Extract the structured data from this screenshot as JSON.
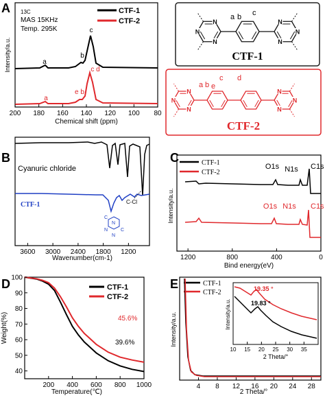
{
  "panel_letters": {
    "a": "A",
    "b": "B",
    "c": "C",
    "d": "D",
    "e": "E"
  },
  "structures": {
    "ctf1": {
      "title": "CTF-1",
      "labels": [
        "a",
        "b",
        "c"
      ],
      "ring_atom": "N"
    },
    "ctf2": {
      "title": "CTF-2",
      "labels": [
        "a",
        "b",
        "c",
        "d",
        "e"
      ],
      "ring_atom": "N"
    }
  },
  "colors": {
    "ctf1": "#000000",
    "ctf2": "#e0282c",
    "cyanuric": "#000000",
    "ctf1_ir": "#1f3fc4",
    "frame_ctf2": "#e0282c"
  },
  "chart_data": [
    {
      "id": "A",
      "type": "line",
      "annotation_lines": [
        "13C",
        "MAS 15KHz",
        "Temp.  295K"
      ],
      "ylabel": "Intensity/a.u.",
      "xlabel": "Chemical shift (ppm)",
      "xlim": [
        200,
        80
      ],
      "xticks": [
        "200",
        "180",
        "160",
        "140",
        "120",
        "100",
        "80"
      ],
      "legend_position": "top-right",
      "series": [
        {
          "name": "CTF-1",
          "peak_labels": [
            {
              "text": "a",
              "x": 172
            },
            {
              "text": "b",
              "x": 138
            },
            {
              "text": "c",
              "x": 128
            }
          ]
        },
        {
          "name": "CTF-2",
          "peak_labels": [
            {
              "text": "a",
              "x": 172
            },
            {
              "text": "e b",
              "x": 139
            },
            {
              "text": "c d",
              "x": 128
            }
          ]
        }
      ]
    },
    {
      "id": "B",
      "type": "line",
      "xlabel": "Wavenumber(cm-1)",
      "ylabel": "",
      "xlim": [
        3900,
        700
      ],
      "xticks": [
        "3600",
        "3000",
        "2400",
        "1800",
        "1200"
      ],
      "series": [
        {
          "name": "Cyanuric chloride"
        },
        {
          "name": "CTF-1"
        }
      ],
      "annotations": [
        "C-Cl"
      ]
    },
    {
      "id": "C",
      "type": "line",
      "xlabel": "Bind energy(eV)",
      "ylabel": "Intensity/a.u.",
      "xlim": [
        1300,
        0
      ],
      "xticks": [
        "1200",
        "800",
        "400",
        "0"
      ],
      "legend_position": "top-left",
      "series": [
        {
          "name": "CTF-1"
        },
        {
          "name": "CTF-2"
        }
      ],
      "peaks": [
        {
          "text": "O1s",
          "x": 532
        },
        {
          "text": "N1s",
          "x": 400
        },
        {
          "text": "C1s",
          "x": 285
        }
      ]
    },
    {
      "id": "D",
      "type": "line",
      "xlabel": "Temperature(℃)",
      "ylabel": "Weight(%)",
      "xlim": [
        0,
        1000
      ],
      "ylim": [
        35,
        100
      ],
      "xticks": [
        "200",
        "400",
        "600",
        "800",
        "1000"
      ],
      "yticks": [
        "40",
        "50",
        "60",
        "70",
        "80",
        "90",
        "100"
      ],
      "legend_position": "top-right",
      "series": [
        {
          "name": "CTF-1",
          "points": [
            [
              0,
              100
            ],
            [
              50,
              99.4
            ],
            [
              100,
              98.8
            ],
            [
              150,
              97.5
            ],
            [
              200,
              95.5
            ],
            [
              250,
              91.5
            ],
            [
              300,
              84
            ],
            [
              350,
              76
            ],
            [
              400,
              68.5
            ],
            [
              450,
              63
            ],
            [
              500,
              58.5
            ],
            [
              600,
              51.5
            ],
            [
              700,
              46.5
            ],
            [
              800,
              43.2
            ],
            [
              900,
              41
            ],
            [
              1000,
              39.6
            ]
          ]
        },
        {
          "name": "CTF-2",
          "points": [
            [
              0,
              100
            ],
            [
              50,
              99.5
            ],
            [
              100,
              99
            ],
            [
              150,
              98
            ],
            [
              200,
              96.5
            ],
            [
              250,
              93
            ],
            [
              300,
              87.5
            ],
            [
              350,
              81
            ],
            [
              400,
              74
            ],
            [
              450,
              68.5
            ],
            [
              500,
              64
            ],
            [
              600,
              57
            ],
            [
              700,
              52
            ],
            [
              800,
              48.8
            ],
            [
              900,
              47
            ],
            [
              1000,
              45.6
            ]
          ]
        }
      ],
      "end_labels": [
        "39.6%",
        "45.6%"
      ]
    },
    {
      "id": "E",
      "type": "line",
      "xlabel": "2 Theta/°",
      "ylabel": "Intensity/a.u.",
      "xlim": [
        0,
        30
      ],
      "xticks": [
        "4",
        "8",
        "12",
        "16",
        "20",
        "24",
        "28"
      ],
      "legend_position": "top-left",
      "series": [
        {
          "name": "CTF-1"
        },
        {
          "name": "CTF-2"
        }
      ],
      "inset": {
        "xlabel": "2 Theta/°",
        "ylabel": "Intensity/a.u.",
        "xlim": [
          10,
          40
        ],
        "xticks": [
          "10",
          "15",
          "20",
          "25",
          "30",
          "35"
        ],
        "peaks": [
          {
            "text": "19.35 °",
            "series": "CTF-2",
            "x": 19.35
          },
          {
            "text": "19.83 °",
            "series": "CTF-1",
            "x": 19.83
          }
        ]
      }
    }
  ]
}
